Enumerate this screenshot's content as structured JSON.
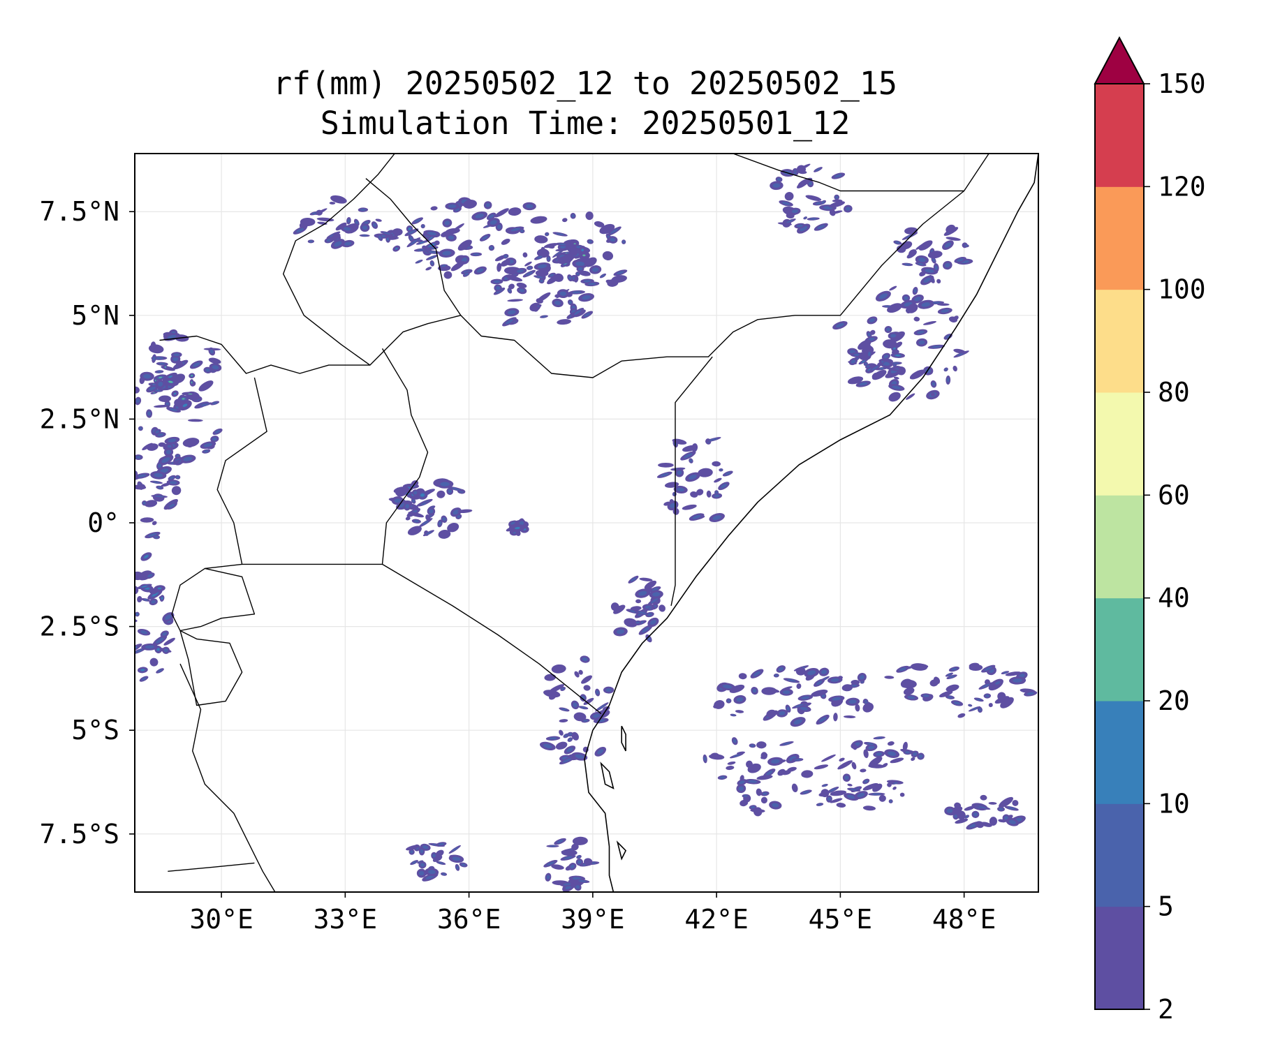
{
  "title": {
    "line1": "rf(mm) 20250502_12 to 20250502_15",
    "line2": "Simulation Time: 20250501_12"
  },
  "map": {
    "lon_range": [
      27.9,
      49.8
    ],
    "lat_range": [
      -8.9,
      8.9
    ],
    "lon_ticks": [
      {
        "value": 30,
        "label": "30°E"
      },
      {
        "value": 33,
        "label": "33°E"
      },
      {
        "value": 36,
        "label": "36°E"
      },
      {
        "value": 39,
        "label": "39°E"
      },
      {
        "value": 42,
        "label": "42°E"
      },
      {
        "value": 45,
        "label": "45°E"
      },
      {
        "value": 48,
        "label": "48°E"
      }
    ],
    "lat_ticks": [
      {
        "value": 7.5,
        "label": "7.5°N"
      },
      {
        "value": 5,
        "label": "5°N"
      },
      {
        "value": 2.5,
        "label": "2.5°N"
      },
      {
        "value": 0,
        "label": "0°"
      },
      {
        "value": -2.5,
        "label": "2.5°S"
      },
      {
        "value": -5,
        "label": "5°S"
      },
      {
        "value": -7.5,
        "label": "7.5°S"
      }
    ],
    "grid": true,
    "borders": [
      [
        [
          28.5,
          4.4
        ],
        [
          29.4,
          4.5
        ],
        [
          30.0,
          4.3
        ],
        [
          30.6,
          3.6
        ],
        [
          31.2,
          3.8
        ],
        [
          31.9,
          3.6
        ],
        [
          32.6,
          3.8
        ],
        [
          33.6,
          3.8
        ],
        [
          34.0,
          4.2
        ],
        [
          34.4,
          4.6
        ],
        [
          35.0,
          4.8
        ],
        [
          35.8,
          5.0
        ],
        [
          36.3,
          4.5
        ],
        [
          37.1,
          4.4
        ],
        [
          38.0,
          3.6
        ],
        [
          39.0,
          3.5
        ],
        [
          39.7,
          3.9
        ],
        [
          40.8,
          4.0
        ],
        [
          41.8,
          4.0
        ],
        [
          42.4,
          4.6
        ],
        [
          43.0,
          4.9
        ],
        [
          43.9,
          5.0
        ],
        [
          45.0,
          5.0
        ],
        [
          46.0,
          6.2
        ],
        [
          47.0,
          7.2
        ],
        [
          48.0,
          8.0
        ]
      ],
      [
        [
          33.9,
          4.2
        ],
        [
          34.5,
          3.2
        ],
        [
          34.6,
          2.6
        ],
        [
          35.0,
          1.7
        ],
        [
          34.8,
          1.1
        ],
        [
          34.0,
          0.0
        ],
        [
          33.9,
          -1.0
        ]
      ],
      [
        [
          29.6,
          -1.1
        ],
        [
          30.5,
          -1.0
        ],
        [
          31.6,
          -1.0
        ],
        [
          33.9,
          -1.0
        ],
        [
          35.6,
          -2.0
        ],
        [
          36.7,
          -2.7
        ],
        [
          37.7,
          -3.4
        ],
        [
          38.7,
          -4.2
        ],
        [
          39.2,
          -4.6
        ]
      ],
      [
        [
          40.9,
          -2.0
        ],
        [
          41.0,
          -1.5
        ],
        [
          41.0,
          0.0
        ],
        [
          41.0,
          1.0
        ],
        [
          41.0,
          2.9
        ],
        [
          41.9,
          4.0
        ]
      ],
      [
        [
          29.0,
          -2.6
        ],
        [
          29.5,
          -2.5
        ],
        [
          30.0,
          -2.3
        ],
        [
          30.8,
          -2.2
        ],
        [
          30.5,
          -1.3
        ],
        [
          29.6,
          -1.1
        ],
        [
          29.0,
          -1.5
        ],
        [
          28.8,
          -2.2
        ],
        [
          29.0,
          -2.6
        ]
      ],
      [
        [
          29.0,
          -2.6
        ],
        [
          29.4,
          -2.8
        ],
        [
          30.2,
          -2.9
        ],
        [
          30.5,
          -3.6
        ],
        [
          30.1,
          -4.3
        ],
        [
          29.4,
          -4.4
        ],
        [
          29.2,
          -3.3
        ],
        [
          29.0,
          -2.6
        ]
      ],
      [
        [
          30.5,
          -1.0
        ],
        [
          30.3,
          0.0
        ],
        [
          29.9,
          0.8
        ],
        [
          30.1,
          1.5
        ],
        [
          31.1,
          2.2
        ],
        [
          30.8,
          3.5
        ]
      ],
      [
        [
          33.6,
          3.8
        ],
        [
          32.9,
          4.3
        ],
        [
          32.0,
          5.0
        ],
        [
          31.5,
          6.0
        ],
        [
          31.8,
          6.8
        ],
        [
          32.5,
          7.2
        ],
        [
          33.2,
          7.8
        ],
        [
          33.8,
          8.4
        ],
        [
          34.2,
          8.9
        ]
      ],
      [
        [
          35.8,
          5.0
        ],
        [
          35.4,
          5.6
        ],
        [
          35.2,
          6.6
        ],
        [
          34.6,
          7.2
        ],
        [
          34.1,
          7.8
        ],
        [
          33.5,
          8.3
        ]
      ],
      [
        [
          42.4,
          8.9
        ],
        [
          43.5,
          8.5
        ],
        [
          44.5,
          8.2
        ],
        [
          45.0,
          8.0
        ],
        [
          47.0,
          8.0
        ],
        [
          48.0,
          8.0
        ]
      ],
      [
        [
          48.0,
          8.0
        ],
        [
          48.6,
          8.9
        ]
      ],
      [
        [
          29.0,
          -3.4
        ],
        [
          29.5,
          -4.5
        ],
        [
          29.3,
          -5.5
        ],
        [
          29.6,
          -6.3
        ],
        [
          30.3,
          -7.0
        ],
        [
          30.7,
          -7.8
        ],
        [
          31.0,
          -8.4
        ],
        [
          31.3,
          -8.9
        ]
      ],
      [
        [
          28.7,
          -8.4
        ],
        [
          29.8,
          -8.3
        ],
        [
          30.8,
          -8.2
        ]
      ]
    ],
    "coastline": [
      [
        [
          49.8,
          8.9
        ],
        [
          49.7,
          8.2
        ],
        [
          49.3,
          7.5
        ],
        [
          48.8,
          6.5
        ],
        [
          48.3,
          5.5
        ],
        [
          47.8,
          4.7
        ],
        [
          47.0,
          3.5
        ],
        [
          46.2,
          2.6
        ],
        [
          45.0,
          2.0
        ],
        [
          44.0,
          1.4
        ],
        [
          43.0,
          0.5
        ],
        [
          42.3,
          -0.3
        ],
        [
          41.5,
          -1.3
        ],
        [
          40.8,
          -2.3
        ],
        [
          40.2,
          -2.9
        ],
        [
          39.7,
          -3.6
        ],
        [
          39.4,
          -4.4
        ],
        [
          39.0,
          -5.0
        ],
        [
          38.8,
          -5.7
        ],
        [
          38.9,
          -6.5
        ],
        [
          39.3,
          -7.0
        ],
        [
          39.4,
          -7.8
        ],
        [
          39.4,
          -8.5
        ],
        [
          39.5,
          -8.9
        ]
      ]
    ],
    "islands": [
      [
        [
          39.7,
          -4.9
        ],
        [
          39.8,
          -5.1
        ],
        [
          39.8,
          -5.5
        ],
        [
          39.7,
          -5.3
        ],
        [
          39.7,
          -4.9
        ]
      ],
      [
        [
          39.2,
          -5.8
        ],
        [
          39.4,
          -6.0
        ],
        [
          39.5,
          -6.4
        ],
        [
          39.3,
          -6.3
        ],
        [
          39.2,
          -5.8
        ]
      ],
      [
        [
          39.6,
          -7.7
        ],
        [
          39.8,
          -7.9
        ],
        [
          39.7,
          -8.1
        ],
        [
          39.6,
          -7.7
        ]
      ]
    ],
    "rain_clusters": [
      {
        "lon": 36.5,
        "lat": 6.8,
        "rx": 2.2,
        "ry": 1.0,
        "level": 1
      },
      {
        "lon": 34.8,
        "lat": 6.8,
        "rx": 0.8,
        "ry": 0.4,
        "level": 2
      },
      {
        "lon": 38.7,
        "lat": 6.4,
        "rx": 1.2,
        "ry": 1.1,
        "level": 1
      },
      {
        "lon": 38.5,
        "lat": 6.5,
        "rx": 0.3,
        "ry": 0.3,
        "level": 3
      },
      {
        "lon": 37.8,
        "lat": 5.4,
        "rx": 1.4,
        "ry": 0.8,
        "level": 1
      },
      {
        "lon": 33.0,
        "lat": 7.2,
        "rx": 1.2,
        "ry": 0.6,
        "level": 1
      },
      {
        "lon": 44.3,
        "lat": 7.8,
        "rx": 1.1,
        "ry": 0.8,
        "level": 1
      },
      {
        "lon": 46.5,
        "lat": 4.3,
        "rx": 1.6,
        "ry": 1.4,
        "level": 1
      },
      {
        "lon": 46.0,
        "lat": 4.0,
        "rx": 0.5,
        "ry": 0.5,
        "level": 2
      },
      {
        "lon": 47.2,
        "lat": 6.5,
        "rx": 0.9,
        "ry": 0.7,
        "level": 1
      },
      {
        "lon": 29.0,
        "lat": 3.0,
        "rx": 1.2,
        "ry": 1.6,
        "level": 1
      },
      {
        "lon": 28.8,
        "lat": 3.2,
        "rx": 0.6,
        "ry": 0.6,
        "level": 3
      },
      {
        "lon": 28.4,
        "lat": 1.0,
        "rx": 0.6,
        "ry": 1.4,
        "level": 1
      },
      {
        "lon": 28.3,
        "lat": -2.3,
        "rx": 0.5,
        "ry": 1.6,
        "level": 2
      },
      {
        "lon": 35.1,
        "lat": 0.4,
        "rx": 0.9,
        "ry": 0.8,
        "level": 1
      },
      {
        "lon": 34.6,
        "lat": 0.6,
        "rx": 0.4,
        "ry": 0.3,
        "level": 2
      },
      {
        "lon": 37.2,
        "lat": -0.1,
        "rx": 0.2,
        "ry": 0.15,
        "level": 2
      },
      {
        "lon": 38.6,
        "lat": -4.5,
        "rx": 0.9,
        "ry": 1.4,
        "level": 1
      },
      {
        "lon": 38.4,
        "lat": -8.2,
        "rx": 0.6,
        "ry": 0.7,
        "level": 1
      },
      {
        "lon": 35.2,
        "lat": -8.1,
        "rx": 0.7,
        "ry": 0.5,
        "level": 1
      },
      {
        "lon": 44.0,
        "lat": -4.2,
        "rx": 2.2,
        "ry": 0.7,
        "level": 1
      },
      {
        "lon": 47.2,
        "lat": -4.0,
        "rx": 2.5,
        "ry": 0.7,
        "level": 1
      },
      {
        "lon": 44.5,
        "lat": -5.6,
        "rx": 3.0,
        "ry": 0.5,
        "level": 1
      },
      {
        "lon": 44.0,
        "lat": -6.5,
        "rx": 2.8,
        "ry": 0.5,
        "level": 1
      },
      {
        "lon": 41.5,
        "lat": 1.0,
        "rx": 0.8,
        "ry": 1.2,
        "level": 1
      },
      {
        "lon": 48.5,
        "lat": -7.0,
        "rx": 1.0,
        "ry": 0.4,
        "level": 1
      },
      {
        "lon": 40.1,
        "lat": -2.1,
        "rx": 0.6,
        "ry": 0.8,
        "level": 1
      }
    ]
  },
  "colorbar": {
    "levels": [
      {
        "label": "2",
        "color": "#5e4fa2"
      },
      {
        "label": "5",
        "color": "#4a63ac"
      },
      {
        "label": "10",
        "color": "#3880ba"
      },
      {
        "label": "20",
        "color": "#5fba9f"
      },
      {
        "label": "40",
        "color": "#bde4a1"
      },
      {
        "label": "60",
        "color": "#f3f9ae"
      },
      {
        "label": "80",
        "color": "#fddd8a"
      },
      {
        "label": "100",
        "color": "#fa9a58"
      },
      {
        "label": "120",
        "color": "#d53e4f"
      }
    ],
    "top_label": "150",
    "extend_color": "#9e0142",
    "extend": "max"
  }
}
